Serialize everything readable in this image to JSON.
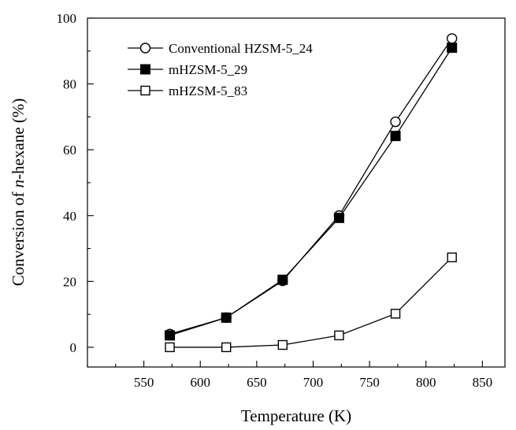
{
  "chart_data": {
    "type": "line",
    "xlabel": "Temperature (K)",
    "ylabel_parts": [
      "Conversion of ",
      "n",
      "-hexane (%)"
    ],
    "xlim": [
      500,
      870
    ],
    "ylim": [
      -6,
      100
    ],
    "xticks": [
      550,
      600,
      650,
      700,
      750,
      800,
      850
    ],
    "yticks": [
      0,
      20,
      40,
      60,
      80,
      100
    ],
    "legend_position": "top-left",
    "series": [
      {
        "name": "Conventional HZSM-5_24",
        "marker": "open-circle",
        "color": "#000000",
        "x": [
          573,
          623,
          673,
          723,
          773,
          823
        ],
        "y": [
          4.0,
          9.0,
          20.2,
          40.0,
          68.5,
          93.8
        ]
      },
      {
        "name": "mHZSM-5_29",
        "marker": "filled-square",
        "color": "#000000",
        "x": [
          573,
          623,
          673,
          723,
          773,
          823
        ],
        "y": [
          3.6,
          9.0,
          20.5,
          39.3,
          64.2,
          91.0
        ]
      },
      {
        "name": "mHZSM-5_83",
        "marker": "open-square",
        "color": "#000000",
        "x": [
          573,
          623,
          673,
          723,
          773,
          823
        ],
        "y": [
          0.0,
          0.0,
          0.7,
          3.6,
          10.2,
          27.3
        ]
      }
    ]
  }
}
